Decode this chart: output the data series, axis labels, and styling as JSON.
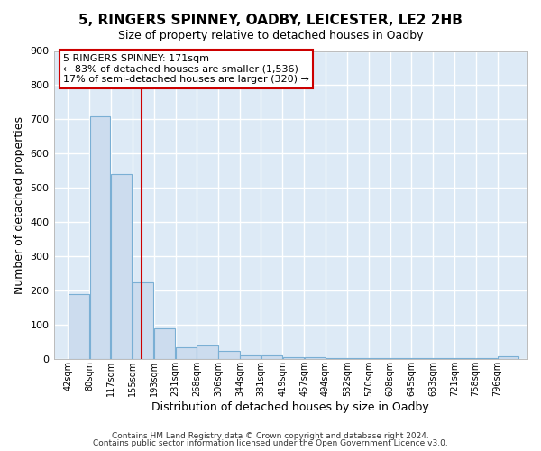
{
  "title": "5, RINGERS SPINNEY, OADBY, LEICESTER, LE2 2HB",
  "subtitle": "Size of property relative to detached houses in Oadby",
  "xlabel": "Distribution of detached houses by size in Oadby",
  "ylabel": "Number of detached properties",
  "bin_labels": [
    "42sqm",
    "80sqm",
    "117sqm",
    "155sqm",
    "193sqm",
    "231sqm",
    "268sqm",
    "306sqm",
    "344sqm",
    "381sqm",
    "419sqm",
    "457sqm",
    "494sqm",
    "532sqm",
    "570sqm",
    "608sqm",
    "645sqm",
    "683sqm",
    "721sqm",
    "758sqm",
    "796sqm"
  ],
  "bar_values": [
    190,
    710,
    540,
    225,
    90,
    35,
    40,
    25,
    12,
    12,
    5,
    5,
    3,
    3,
    2,
    2,
    2,
    2,
    2,
    2,
    8
  ],
  "bar_color": "#ccdcee",
  "bar_edgecolor": "#7aafd4",
  "ylim": [
    0,
    900
  ],
  "yticks": [
    0,
    100,
    200,
    300,
    400,
    500,
    600,
    700,
    800,
    900
  ],
  "property_line_x": 171,
  "property_line_color": "#cc0000",
  "annotation_title": "5 RINGERS SPINNEY: 171sqm",
  "annotation_line1": "← 83% of detached houses are smaller (1,536)",
  "annotation_line2": "17% of semi-detached houses are larger (320) →",
  "footer1": "Contains HM Land Registry data © Crown copyright and database right 2024.",
  "footer2": "Contains public sector information licensed under the Open Government Licence v3.0.",
  "figure_bg_color": "#ffffff",
  "plot_bg_color": "#ddeaf6",
  "grid_color": "#ffffff",
  "bin_starts": [
    42,
    80,
    117,
    155,
    193,
    231,
    268,
    306,
    344,
    381,
    419,
    457,
    494,
    532,
    570,
    608,
    645,
    683,
    721,
    758,
    796
  ]
}
